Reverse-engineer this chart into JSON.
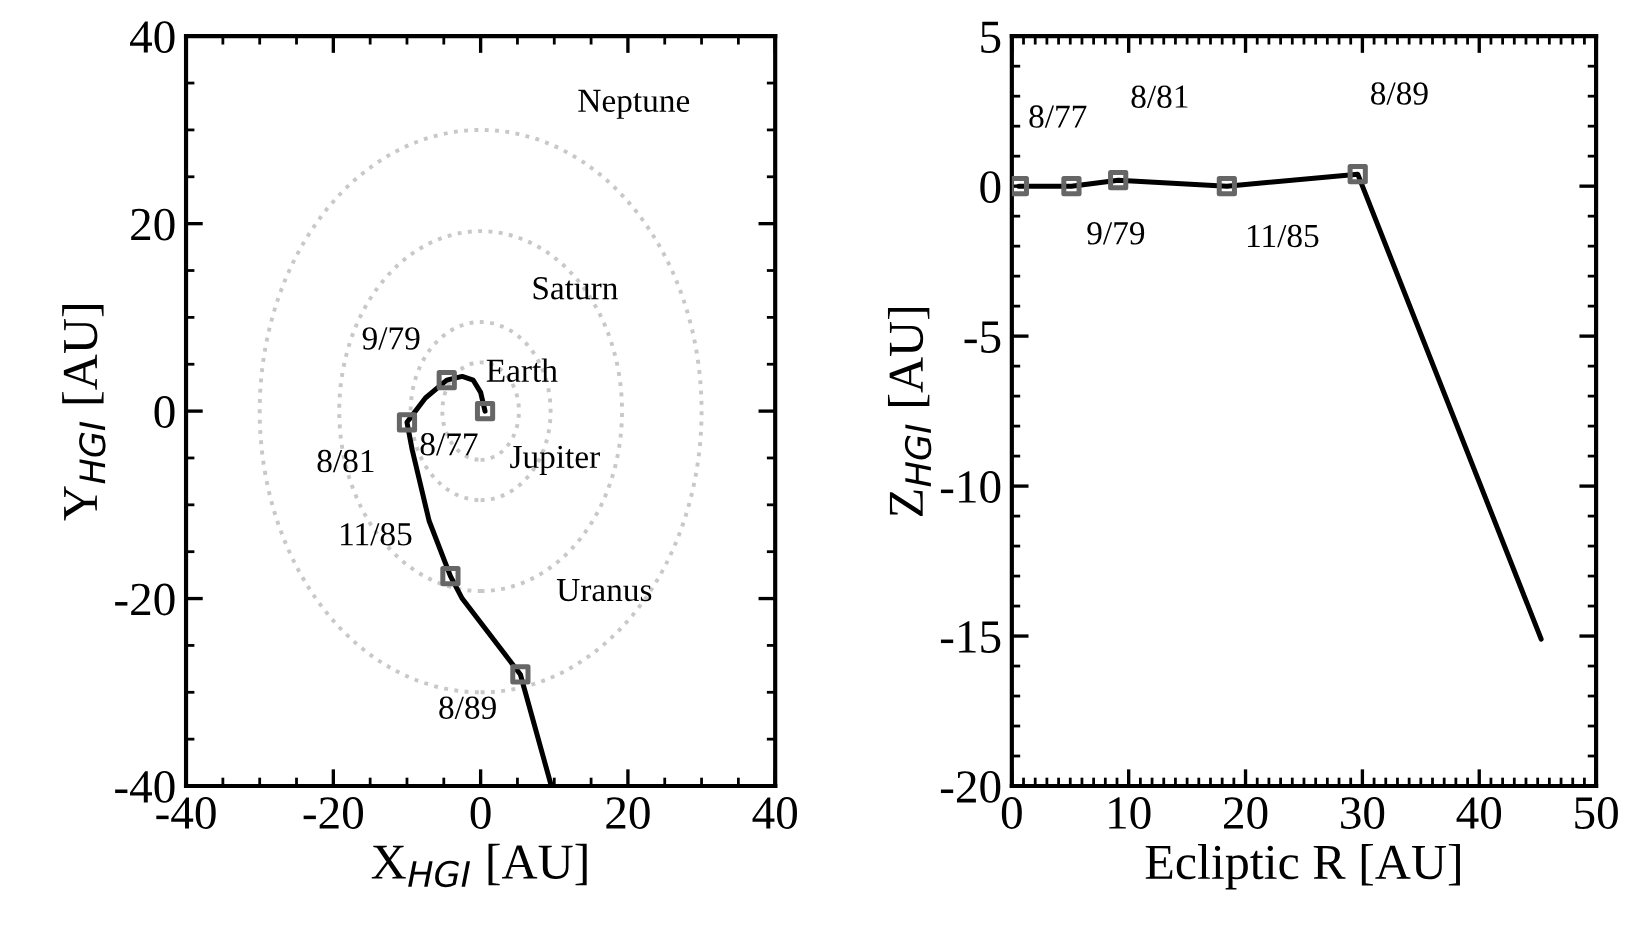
{
  "chart_data": [
    {
      "type": "line",
      "xlabel": "X$_{HGI}$ [AU]",
      "ylabel": "Y$_{HGI}$ [AU]",
      "xlim": [
        -40,
        40
      ],
      "ylim": [
        -40,
        40
      ],
      "xticks": [
        -40,
        -20,
        0,
        20,
        40
      ],
      "yticks": [
        -40,
        -20,
        0,
        20,
        40
      ],
      "series": [
        {
          "color": "#000000",
          "line_style": "solid",
          "x": [
            0.6,
            0,
            -1,
            -2.5,
            -4.6,
            -7.5,
            -10,
            -9.3,
            -7,
            -4.1,
            -2.5,
            5.4,
            9.6
          ],
          "values": [
            0,
            2,
            3.3,
            3.7,
            3.3,
            1.4,
            -1.2,
            -4.1,
            -11.7,
            -17.6,
            -20,
            -28.1,
            -40
          ]
        },
        {
          "type": "scatter",
          "color": "#666666",
          "marker": "square",
          "x": [
            0.6,
            -4.6,
            -10,
            -4.1,
            5.4
          ],
          "values": [
            0,
            3.3,
            -1.2,
            -17.6,
            -28.1
          ]
        }
      ],
      "annotations": [
        "Neptune",
        "Saturn",
        "Earth",
        "Jupiter",
        "Uranus",
        {
          "text": "9/79",
          "x": -4.6,
          "y": 3.3
        },
        {
          "text": "8/81",
          "x": -10,
          "y": -1.2
        },
        {
          "text": "8/77",
          "x": 0.6,
          "y": 0
        },
        {
          "text": "11/85",
          "x": -4.1,
          "y": -17.6
        },
        {
          "text": "8/89",
          "x": 5.4,
          "y": -28.1
        }
      ]
    },
    {
      "type": "line",
      "xlabel": "Ecliptic R [AU]",
      "ylabel": "Z$_{HGI}$ [AU]",
      "xlim": [
        0,
        50
      ],
      "ylim": [
        -20,
        5
      ],
      "xticks": [
        0,
        10,
        20,
        30,
        40,
        50
      ],
      "yticks": [
        -20,
        -15,
        -10,
        -5,
        0,
        5
      ],
      "series": [
        {
          "color": "#000000",
          "line_style": "solid",
          "x": [
            0.6,
            5.1,
            9.1,
            18.4,
            29.6,
            45.3
          ],
          "values": [
            0,
            0,
            0.2,
            0,
            0.4,
            -15.1
          ]
        },
        {
          "type": "scatter",
          "color": "#666666",
          "marker": "square",
          "x": [
            0.6,
            5.1,
            9.1,
            18.4,
            29.6
          ],
          "values": [
            0,
            0,
            0.2,
            0,
            0.4
          ]
        }
      ],
      "annotations": [
        {
          "text": "8/77",
          "x": 0.6,
          "y": 0
        },
        {
          "text": "9/79",
          "x": 5.1,
          "y": 0
        },
        {
          "text": "8/81",
          "x": 9.1,
          "y": 0.2
        },
        {
          "text": "11/85",
          "x": 18.4,
          "y": 0
        },
        {
          "text": "8/89",
          "x": 29.6,
          "y": 0.4
        }
      ]
    }
  ]
}
